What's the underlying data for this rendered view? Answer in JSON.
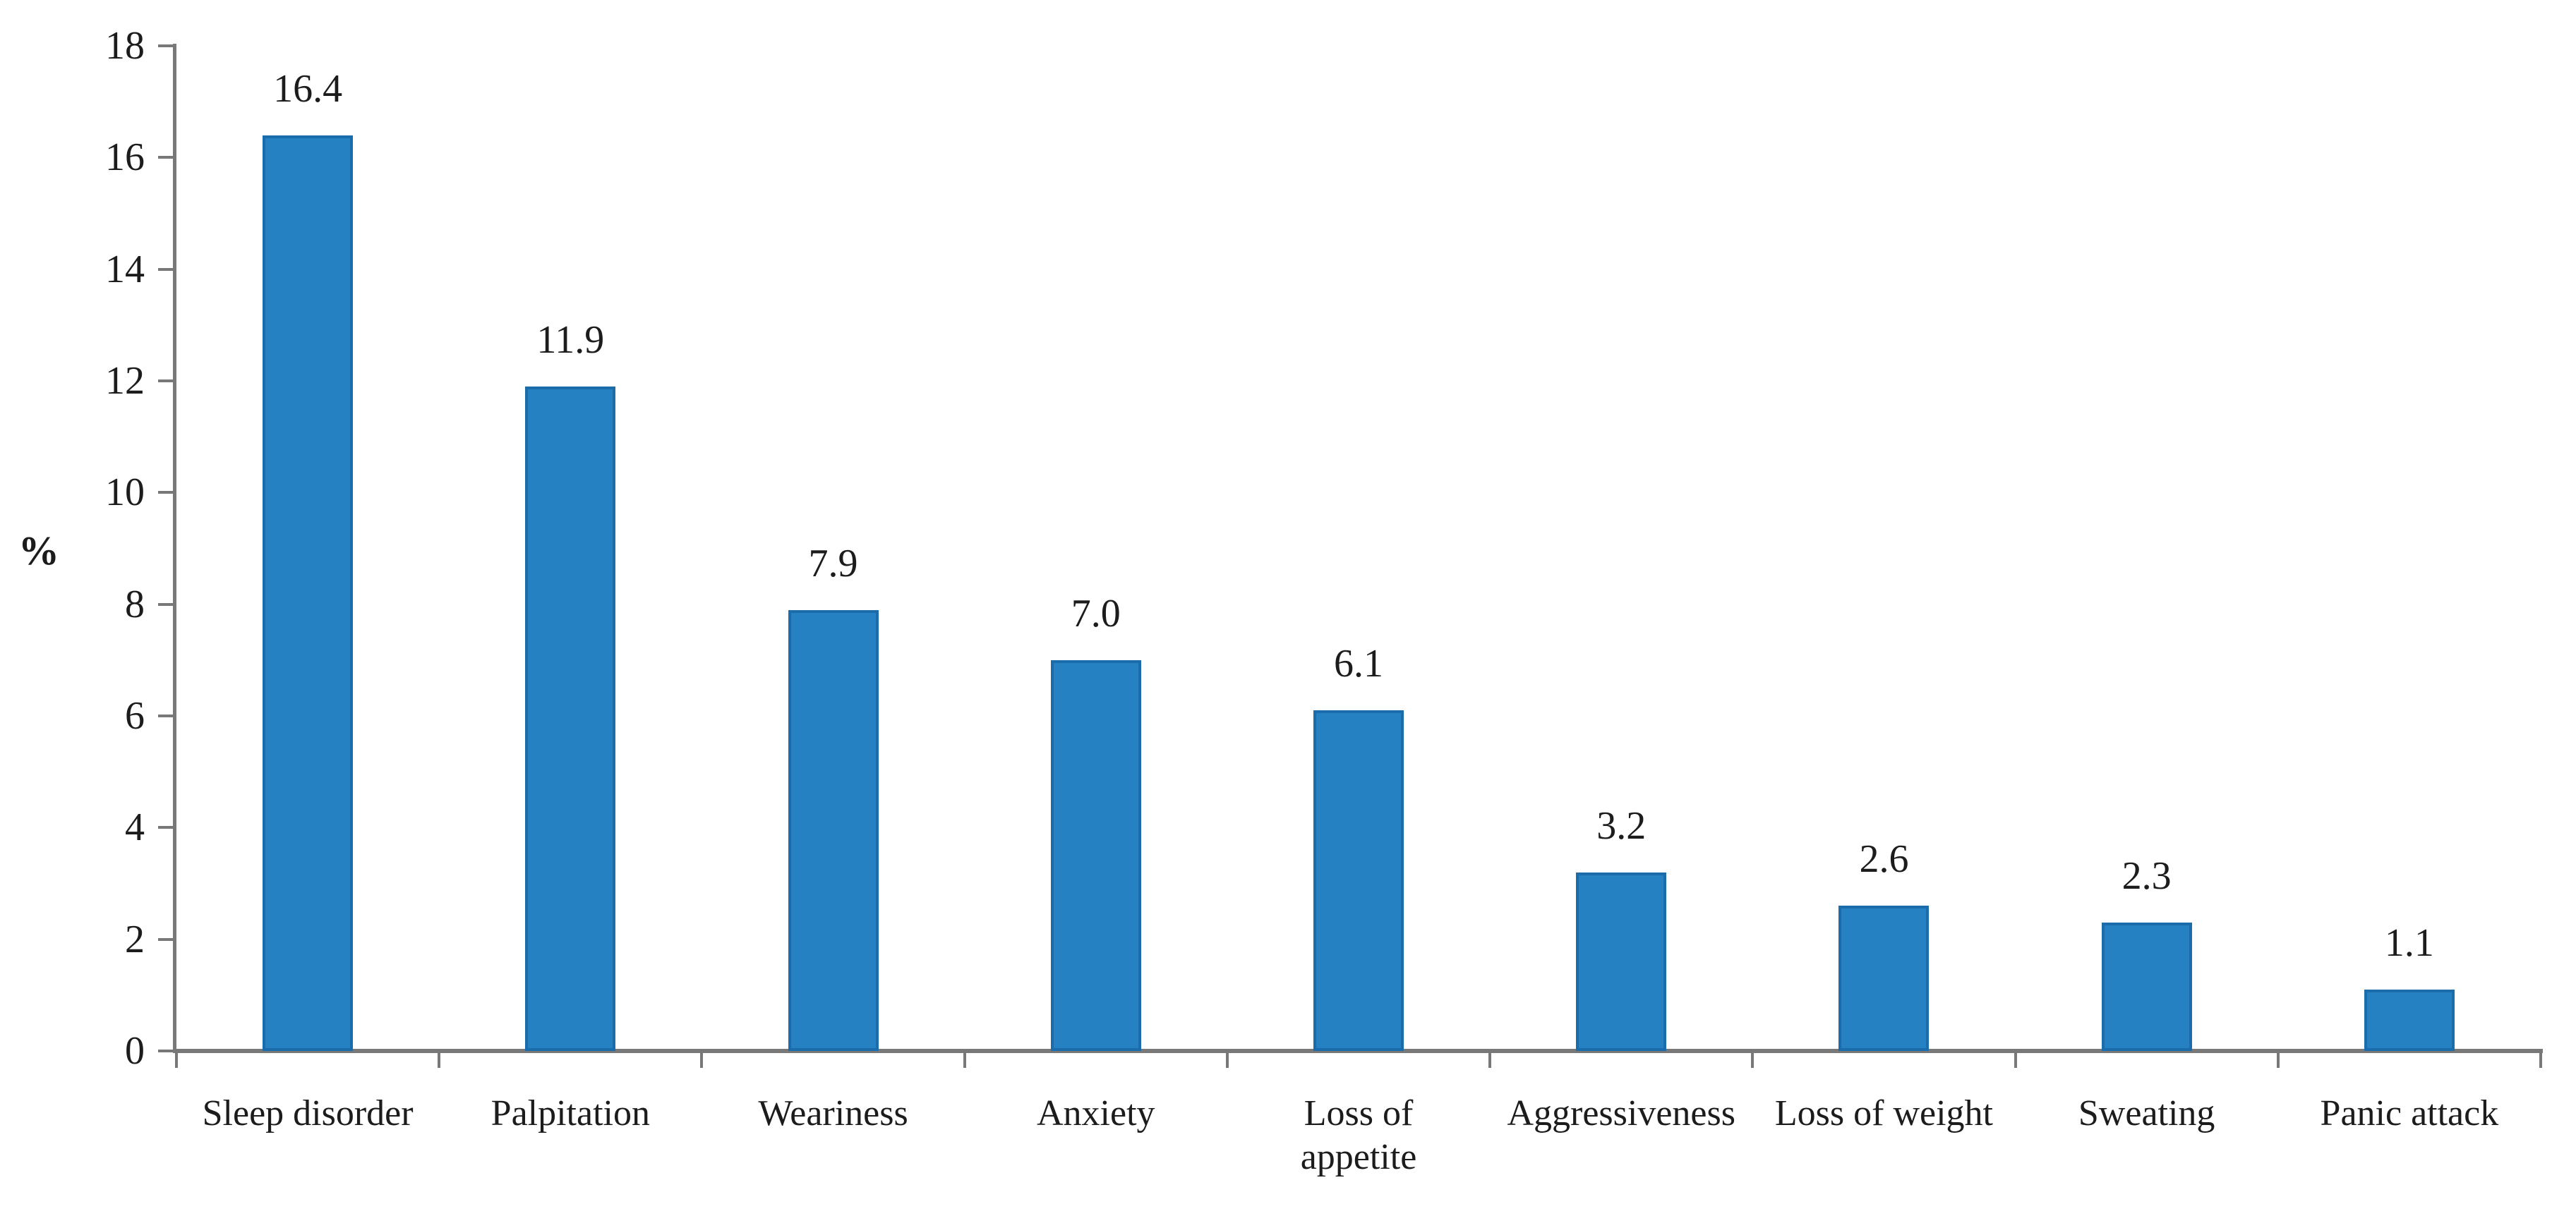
{
  "chart_data": {
    "type": "bar",
    "title": "",
    "xlabel": "",
    "ylabel": "%",
    "categories": [
      "Sleep disorder",
      "Palpitation",
      "Weariness",
      "Anxiety",
      "Loss of\nappetite",
      "Aggressiveness",
      "Loss of weight",
      "Sweating",
      "Panic attack"
    ],
    "values": [
      16.4,
      11.9,
      7.9,
      7.0,
      6.1,
      3.2,
      2.6,
      2.3,
      1.1
    ],
    "value_labels": [
      "16.4",
      "11.9",
      "7.9",
      "7.0",
      "6.1",
      "3.2",
      "2.6",
      "2.3",
      "1.1"
    ],
    "ylim": [
      0,
      18
    ],
    "yticks": [
      0,
      2,
      4,
      6,
      8,
      10,
      12,
      14,
      16,
      18
    ],
    "grid": false,
    "legend": false,
    "bar_color": "#2581c2",
    "bar_border_color": "#1b6cab",
    "axis_color": "#787878",
    "text_color": "#1c1c1c"
  }
}
